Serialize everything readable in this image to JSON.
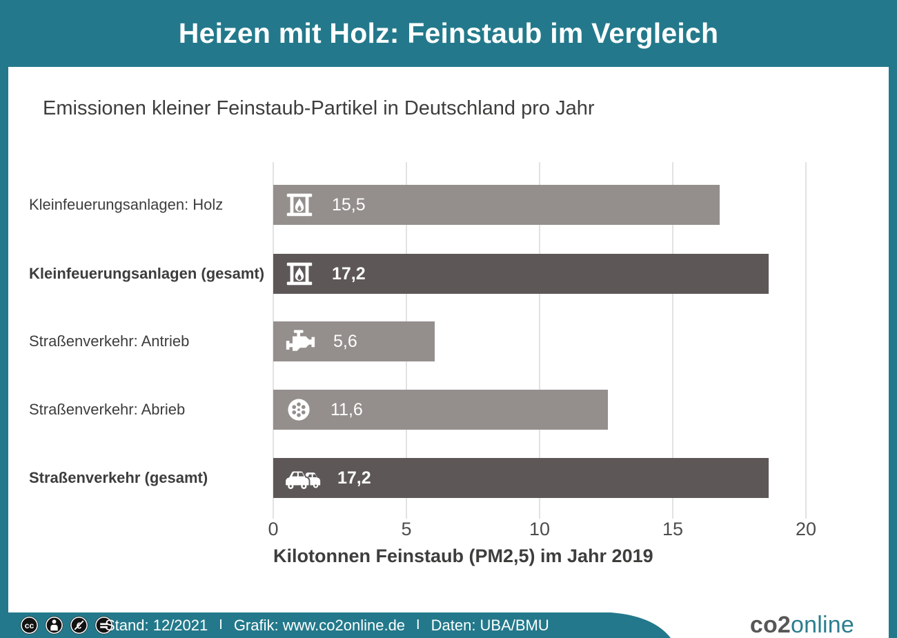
{
  "colors": {
    "teal": "#23798b",
    "bar_light": "#948f8d",
    "bar_dark": "#5d5857",
    "text_dark": "#3d3d3c",
    "axis_text": "#4c4c4b",
    "gridline": "#e2e2e2",
    "white": "#ffffff",
    "logo_gray": "#575756",
    "logo_teal": "#2a7d8f",
    "license_icon_black": "#121212"
  },
  "header": {
    "title": "Heizen mit Holz: Feinstaub im Vergleich"
  },
  "chart_data": {
    "type": "bar",
    "orientation": "horizontal",
    "title": "Emissionen kleiner Feinstaub-Partikel in Deutschland pro Jahr",
    "xlabel": "Kilotonnen Feinstaub (PM2,5) im Jahr 2019",
    "xlim": [
      0,
      20
    ],
    "xticks": [
      "0",
      "5",
      "10",
      "15",
      "20"
    ],
    "grid": true,
    "legend": "none",
    "categories": [
      "Kleinfeuerungsanlagen: Holz",
      "Kleinfeuerungsanlagen (gesamt)",
      "Straßenverkehr: Antrieb",
      "Straßenverkehr: Abrieb",
      "Straßenverkehr (gesamt)"
    ],
    "values": [
      15.5,
      17.2,
      5.6,
      11.6,
      17.2
    ],
    "bars": [
      {
        "label": "Kleinfeuerungsanlagen: Holz",
        "value": 15.5,
        "value_label": "15,5",
        "icon": "fireplace-icon",
        "emphasis": false,
        "color": "#948f8d"
      },
      {
        "label": "Kleinfeuerungsanlagen (gesamt)",
        "value": 17.2,
        "value_label": "17,2",
        "icon": "fireplace-icon",
        "emphasis": true,
        "color": "#5d5857"
      },
      {
        "label": "Straßenverkehr: Antrieb",
        "value": 5.6,
        "value_label": "5,6",
        "icon": "engine-icon",
        "emphasis": false,
        "color": "#948f8d"
      },
      {
        "label": "Straßenverkehr: Abrieb",
        "value": 11.6,
        "value_label": "11,6",
        "icon": "tire-icon",
        "emphasis": false,
        "color": "#948f8d"
      },
      {
        "label": "Straßenverkehr (gesamt)",
        "value": 17.2,
        "value_label": "17,2",
        "icon": "cars-icon",
        "emphasis": true,
        "color": "#5d5857"
      }
    ]
  },
  "footer": {
    "license_icons": [
      {
        "name": "cc-icon",
        "glyph": "cc"
      },
      {
        "name": "cc-by-icon",
        "glyph": "person"
      },
      {
        "name": "cc-nc-icon",
        "glyph": "euro-crossed"
      },
      {
        "name": "cc-nd-icon",
        "glyph": "equals"
      }
    ],
    "stand": "Stand: 12/2021",
    "separator": "I",
    "grafik": "Grafik: www.co2online.de",
    "daten": "Daten: UBA/BMU",
    "logo": {
      "co2": "co2",
      "online": "online"
    }
  }
}
